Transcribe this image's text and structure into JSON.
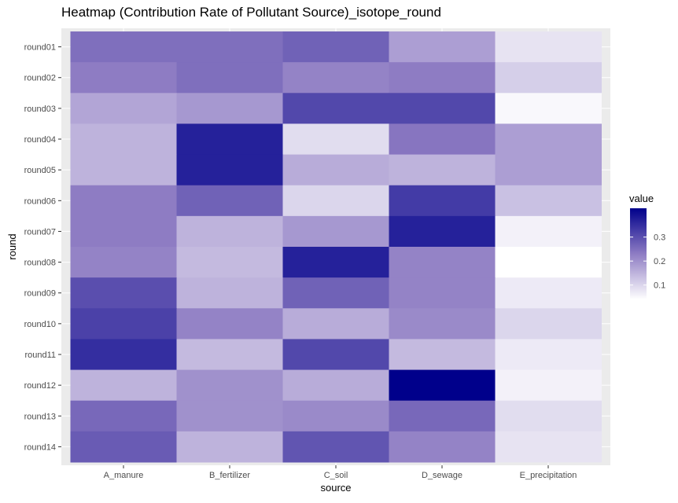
{
  "chart_data": {
    "type": "heatmap",
    "title": "Heatmap (Contribution Rate of Pollutant Source)_isotope_round",
    "xlabel": "source",
    "ylabel": "round",
    "x_categories": [
      "A_manure",
      "B_fertilizer",
      "C_soil",
      "D_sewage",
      "E_precipitation"
    ],
    "y_categories": [
      "round01",
      "round02",
      "round03",
      "round04",
      "round05",
      "round06",
      "round07",
      "round08",
      "round09",
      "round10",
      "round11",
      "round12",
      "round13",
      "round14"
    ],
    "values": [
      [
        0.25,
        0.25,
        0.27,
        0.18,
        0.08
      ],
      [
        0.23,
        0.25,
        0.22,
        0.23,
        0.11
      ],
      [
        0.17,
        0.19,
        0.31,
        0.31,
        0.05
      ],
      [
        0.15,
        0.37,
        0.09,
        0.24,
        0.18
      ],
      [
        0.15,
        0.37,
        0.16,
        0.15,
        0.18
      ],
      [
        0.23,
        0.27,
        0.1,
        0.33,
        0.13
      ],
      [
        0.23,
        0.15,
        0.19,
        0.37,
        0.06
      ],
      [
        0.22,
        0.14,
        0.37,
        0.22,
        0.04
      ],
      [
        0.3,
        0.15,
        0.27,
        0.22,
        0.07
      ],
      [
        0.32,
        0.22,
        0.16,
        0.21,
        0.1
      ],
      [
        0.35,
        0.14,
        0.31,
        0.14,
        0.07
      ],
      [
        0.15,
        0.2,
        0.16,
        0.42,
        0.06
      ],
      [
        0.26,
        0.2,
        0.21,
        0.26,
        0.09
      ],
      [
        0.28,
        0.15,
        0.29,
        0.22,
        0.08
      ]
    ],
    "color_scale": {
      "low": "#ffffff",
      "high": "#00008b",
      "min": 0.04,
      "max": 0.42
    },
    "legend": {
      "title": "value",
      "ticks": [
        0.1,
        0.2,
        0.3
      ],
      "position": "right"
    },
    "panel_background": "#ebebeb",
    "grid": true
  }
}
